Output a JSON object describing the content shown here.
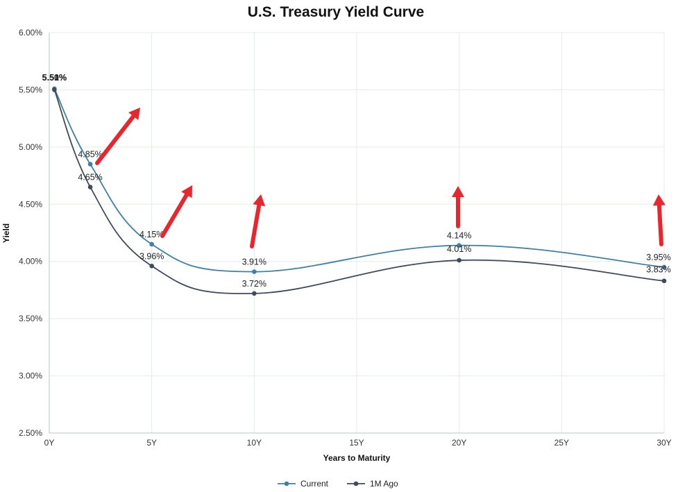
{
  "chart_data": {
    "type": "line",
    "title": "U.S. Treasury Yield Curve",
    "xlabel": "Years to Maturity",
    "ylabel": "Yield",
    "xlim": [
      0,
      30
    ],
    "ylim": [
      2.5,
      6.0
    ],
    "x_ticks": [
      0,
      5,
      10,
      15,
      20,
      25,
      30
    ],
    "x_tick_labels": [
      "0Y",
      "5Y",
      "10Y",
      "15Y",
      "20Y",
      "25Y",
      "30Y"
    ],
    "y_ticks": [
      2.5,
      3.0,
      3.5,
      4.0,
      4.5,
      5.0,
      5.5,
      6.0
    ],
    "y_tick_labels": [
      "2.50%",
      "3.00%",
      "3.50%",
      "4.00%",
      "4.50%",
      "5.00%",
      "5.50%",
      "6.00%"
    ],
    "grid": true,
    "legend": "bottom",
    "x": [
      0.25,
      2,
      5,
      10,
      20,
      30
    ],
    "series": [
      {
        "name": "Current",
        "color": "#3d7fa6",
        "values": [
          5.51,
          4.85,
          4.15,
          3.91,
          4.14,
          3.95
        ],
        "labels": [
          "5.51%",
          "4.85%",
          "4.15%",
          "3.91%",
          "4.14%",
          "3.95%"
        ]
      },
      {
        "name": "1M Ago",
        "color": "#3f4a5c",
        "values": [
          5.5,
          4.65,
          3.96,
          3.72,
          4.01,
          3.83
        ],
        "labels": [
          "5.50%",
          "4.65%",
          "3.96%",
          "3.72%",
          "4.01%",
          "3.83%"
        ]
      }
    ],
    "annotations": {
      "arrow_color": "#e8262e",
      "arrows": [
        "up-right",
        "up-right",
        "up",
        "up",
        "up"
      ]
    }
  }
}
